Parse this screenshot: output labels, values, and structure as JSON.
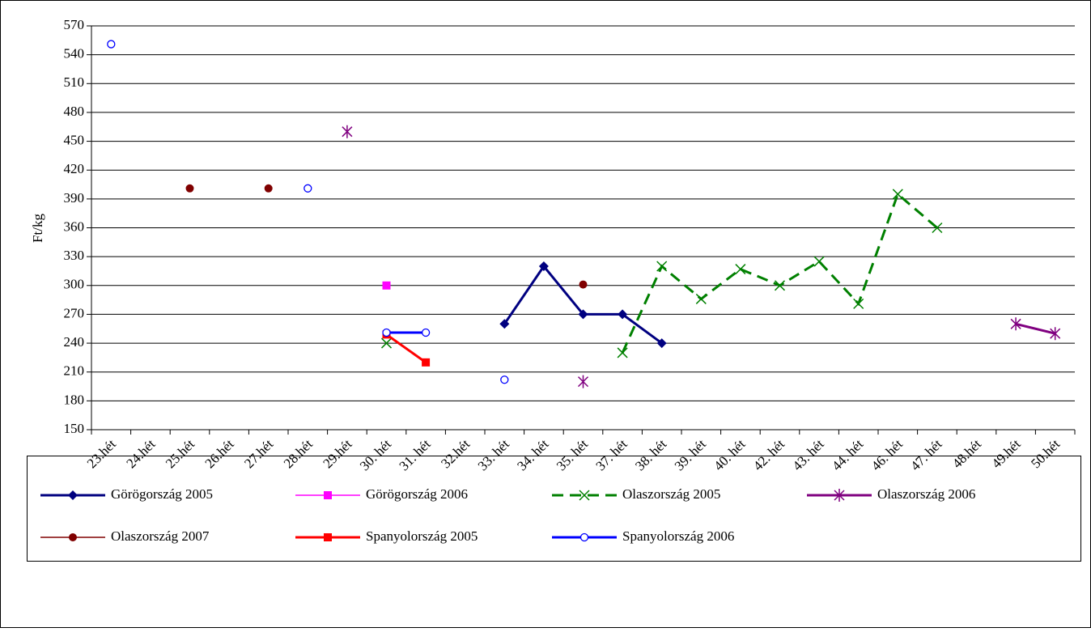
{
  "chart_data": {
    "type": "line",
    "y_label": "Ft/kg",
    "categories": [
      "23.hét",
      "24.hét",
      "25.hét",
      "26.hét",
      "27.hét",
      "28.hét",
      "29.hét",
      "30. hét",
      "31. hét",
      "32.hét",
      "33. hét",
      "34. hét",
      "35. hét",
      "37. hét",
      "38. hét",
      "39. hét",
      "40. hét",
      "42. hét",
      "43. hét",
      "44. hét",
      "46. hét",
      "47. hét",
      "48.hét",
      "49.hét",
      "50.hét"
    ],
    "series": [
      {
        "name": "Görögország 2005",
        "color": "#000080",
        "marker": "diamond",
        "dashed": false,
        "values": [
          null,
          null,
          null,
          null,
          null,
          null,
          null,
          null,
          null,
          null,
          260,
          320,
          270,
          270,
          240,
          null,
          null,
          null,
          null,
          null,
          null,
          null,
          null,
          null,
          null
        ]
      },
      {
        "name": "Görögország 2006",
        "color": "#ff00ff",
        "marker": "square",
        "dashed": false,
        "values": [
          null,
          null,
          null,
          null,
          null,
          null,
          null,
          300,
          null,
          null,
          null,
          null,
          null,
          null,
          null,
          null,
          null,
          null,
          null,
          null,
          null,
          null,
          null,
          null,
          null
        ]
      },
      {
        "name": "Olaszország 2005",
        "color": "#008000",
        "marker": "x",
        "dashed": true,
        "values": [
          null,
          null,
          null,
          null,
          null,
          null,
          null,
          240,
          null,
          null,
          null,
          null,
          null,
          230,
          320,
          286,
          317,
          300,
          325,
          281,
          395,
          360,
          null,
          null,
          null
        ]
      },
      {
        "name": "Olaszország 2006",
        "color": "#800080",
        "marker": "star",
        "dashed": false,
        "values": [
          null,
          null,
          null,
          null,
          null,
          null,
          460,
          null,
          null,
          null,
          null,
          null,
          200,
          null,
          null,
          null,
          null,
          null,
          null,
          null,
          null,
          null,
          null,
          260,
          250
        ]
      },
      {
        "name": "Olaszország 2007",
        "color": "#800000",
        "marker": "dot",
        "dashed": false,
        "values": [
          null,
          null,
          401,
          null,
          401,
          null,
          null,
          null,
          null,
          null,
          null,
          null,
          301,
          null,
          null,
          null,
          null,
          null,
          null,
          null,
          null,
          null,
          null,
          null,
          null
        ]
      },
      {
        "name": "Spanyolország 2005",
        "color": "#ff0000",
        "marker": "square",
        "dashed": false,
        "values": [
          null,
          null,
          null,
          null,
          null,
          null,
          null,
          249,
          220,
          null,
          null,
          null,
          null,
          null,
          null,
          null,
          null,
          null,
          null,
          null,
          null,
          null,
          null,
          null,
          null
        ]
      },
      {
        "name": "Spanyolország 2006",
        "color": "#0000ff",
        "marker": "circle",
        "dashed": false,
        "values": [
          551,
          null,
          null,
          null,
          null,
          401,
          null,
          251,
          251,
          null,
          202,
          null,
          null,
          null,
          null,
          null,
          null,
          null,
          null,
          null,
          null,
          null,
          null,
          null,
          null
        ]
      }
    ],
    "ylim": [
      150,
      570
    ],
    "yticks": [
      150,
      180,
      210,
      240,
      270,
      300,
      330,
      360,
      390,
      420,
      450,
      480,
      510,
      540,
      570
    ],
    "grid": true
  }
}
